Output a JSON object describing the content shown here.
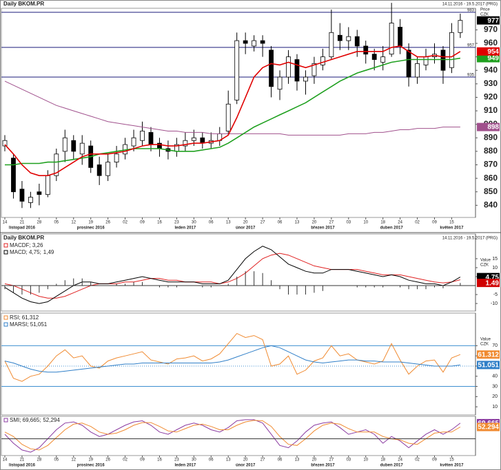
{
  "chart_data": [
    {
      "type": "candlestick",
      "title": "Daily BKOM.PR",
      "subtitle": "14.11.2016 - 19.5.2017 (PRG)",
      "y_label": [
        "Price",
        "CZK"
      ],
      "categories": [
        "14",
        null,
        "21",
        null,
        "28",
        null,
        "05",
        null,
        "12",
        null,
        "19",
        null,
        "26",
        null,
        "02",
        null,
        "09",
        null,
        "16",
        null,
        "23",
        null,
        "30",
        null,
        "06",
        null,
        "13",
        null,
        "20",
        null,
        "27",
        null,
        "06",
        null,
        "13",
        null,
        "20",
        null,
        "27",
        null,
        "03",
        null,
        "10",
        null,
        "18",
        null,
        "24",
        null,
        "02",
        null,
        "09",
        null,
        "15",
        null
      ],
      "month_labels": [
        null,
        null,
        "listopad 2016",
        null,
        null,
        null,
        null,
        null,
        null,
        null,
        "prosinec 2016",
        null,
        null,
        null,
        null,
        null,
        null,
        null,
        null,
        null,
        null,
        "leden 2017",
        null,
        null,
        null,
        null,
        null,
        null,
        "únor 2017",
        null,
        null,
        null,
        null,
        null,
        null,
        null,
        null,
        "březen 2017",
        null,
        null,
        null,
        null,
        null,
        null,
        null,
        "duben 2017",
        null,
        null,
        null,
        null,
        null,
        null,
        "květen 2017",
        null
      ],
      "open": [
        884,
        875,
        852,
        842,
        850,
        848,
        862,
        880,
        888,
        878,
        884,
        870,
        862,
        872,
        878,
        884,
        888,
        894,
        886,
        882,
        880,
        884,
        888,
        890,
        886,
        888,
        895,
        918,
        962,
        958,
        962,
        955,
        926,
        935,
        948,
        932,
        936,
        944,
        950,
        966,
        962,
        965,
        958,
        952,
        946,
        952,
        972,
        955,
        935,
        944,
        950,
        955,
        942,
        968
      ],
      "high": [
        892,
        878,
        858,
        850,
        856,
        866,
        882,
        896,
        892,
        892,
        888,
        876,
        878,
        884,
        890,
        896,
        902,
        898,
        890,
        888,
        890,
        894,
        896,
        894,
        894,
        898,
        925,
        968,
        968,
        966,
        966,
        958,
        940,
        955,
        952,
        940,
        950,
        956,
        985,
        975,
        972,
        970,
        962,
        956,
        958,
        990,
        978,
        960,
        950,
        956,
        960,
        958,
        975,
        982
      ],
      "low": [
        880,
        845,
        838,
        838,
        840,
        846,
        858,
        872,
        874,
        870,
        864,
        855,
        858,
        868,
        874,
        880,
        884,
        880,
        876,
        874,
        876,
        880,
        884,
        882,
        882,
        884,
        892,
        915,
        952,
        954,
        950,
        920,
        918,
        930,
        925,
        922,
        930,
        940,
        948,
        955,
        955,
        950,
        945,
        940,
        940,
        950,
        952,
        928,
        930,
        940,
        945,
        930,
        938,
        964
      ],
      "close": [
        888,
        850,
        843,
        846,
        848,
        862,
        878,
        890,
        880,
        886,
        868,
        862,
        872,
        878,
        885,
        890,
        895,
        885,
        882,
        880,
        885,
        888,
        890,
        886,
        888,
        893,
        915,
        962,
        960,
        962,
        960,
        928,
        935,
        950,
        932,
        935,
        945,
        950,
        968,
        962,
        965,
        958,
        952,
        948,
        950,
        975,
        958,
        935,
        945,
        950,
        952,
        940,
        968,
        977
      ],
      "up_color": "#ffffff",
      "down_color": "#000000",
      "series": [
        {
          "color": "#a0508c",
          "values": [
            932,
            929,
            926,
            923,
            920,
            917,
            914,
            912,
            910,
            908,
            906,
            904,
            902,
            901,
            900,
            899,
            898,
            897,
            896,
            895,
            895,
            894,
            894,
            894,
            893,
            893,
            893,
            893,
            893,
            893,
            893,
            893,
            893,
            892,
            892,
            892,
            892,
            892,
            892,
            892,
            893,
            893,
            893,
            894,
            894,
            895,
            896,
            896,
            897,
            897,
            897,
            898,
            898,
            898
          ]
        },
        {
          "color": "#1fa01f",
          "values": [
            870,
            870,
            871,
            871,
            871,
            872,
            872,
            873,
            874,
            875,
            876,
            878,
            879,
            880,
            881,
            882,
            882,
            882,
            882,
            881,
            880,
            880,
            880,
            881,
            882,
            883,
            886,
            890,
            894,
            898,
            901,
            904,
            907,
            910,
            913,
            916,
            920,
            924,
            928,
            932,
            935,
            938,
            940,
            942,
            944,
            946,
            947,
            948,
            948,
            948,
            948,
            948,
            948,
            949
          ]
        },
        {
          "color": "#e00000",
          "values": [
            885,
            878,
            870,
            864,
            862,
            862,
            864,
            868,
            872,
            876,
            878,
            878,
            878,
            879,
            880,
            882,
            884,
            885,
            885,
            884,
            884,
            885,
            886,
            886,
            887,
            888,
            892,
            905,
            920,
            935,
            942,
            945,
            944,
            946,
            944,
            942,
            944,
            946,
            948,
            950,
            952,
            954,
            954,
            954,
            954,
            957,
            958,
            954,
            950,
            950,
            951,
            950,
            950,
            954
          ]
        }
      ],
      "hlines": [
        983,
        957,
        935
      ],
      "hline_color": "#1a1a7a",
      "ylim": [
        831,
        986
      ],
      "yticks": [
        840,
        850,
        860,
        870,
        880,
        890,
        900,
        910,
        920,
        930,
        940,
        950,
        960,
        970
      ]
    },
    {
      "type": "line",
      "title": "Daily BKOM.PR",
      "subtitle": "14.11.2016 - 19.5.2017 (PRG)",
      "y_label": [
        "Value",
        "CZK"
      ],
      "series": [
        {
          "name": "MACDF; 3,26",
          "color": "#e02020",
          "values": [
            1,
            0,
            -2,
            -4,
            -6,
            -7,
            -7,
            -6,
            -4,
            -2,
            0,
            1,
            1,
            1,
            2,
            2,
            3,
            4,
            4,
            3,
            3,
            2,
            2,
            2,
            2,
            1,
            2,
            4,
            7,
            11,
            15,
            17,
            18,
            17,
            15,
            13,
            11,
            10,
            9,
            9,
            9,
            9,
            8,
            7,
            6,
            6,
            6,
            5,
            4,
            3,
            2,
            1.5,
            2,
            3.26
          ]
        },
        {
          "name": "MACD; 4,75;",
          "color": "#000000",
          "values": [
            -1,
            -4,
            -7,
            -9,
            -10,
            -9,
            -6,
            -3,
            0,
            2,
            2,
            1,
            1,
            2,
            3,
            4,
            5,
            4,
            3,
            2,
            2,
            2,
            2,
            1,
            1,
            1,
            3,
            9,
            15,
            19,
            22,
            20,
            16,
            12,
            10,
            8,
            7,
            7,
            9,
            9,
            9,
            8,
            7,
            6,
            5,
            6,
            5,
            3,
            2,
            1,
            1,
            0,
            2,
            4.75
          ]
        },
        {
          "name": "1,49",
          "color": "#d00000",
          "style": "bar",
          "bar_color": "#333333",
          "legend_inline": true,
          "values": [
            -2,
            -4,
            -5,
            -5,
            -4,
            -2,
            1,
            3,
            4,
            4,
            2,
            0,
            0,
            1,
            1,
            2,
            2,
            0,
            -1,
            -1,
            -1,
            0,
            0,
            -1,
            -1,
            0,
            1,
            5,
            8,
            8,
            7,
            3,
            -2,
            -5,
            -5,
            -5,
            -4,
            -3,
            0,
            0,
            0,
            -1,
            -1,
            -1,
            -1,
            0,
            -1,
            -2,
            -2,
            -2,
            -1,
            -1.5,
            0,
            1.49
          ]
        }
      ],
      "ylim": [
        -14.2,
        28.8
      ],
      "yticks": [
        -10,
        -5,
        5,
        10,
        15
      ]
    },
    {
      "type": "line",
      "y_label": [
        "Value",
        "CZK"
      ],
      "series": [
        {
          "name": "RSI; 61,312",
          "color": "#f08a30",
          "values": [
            55,
            38,
            35,
            40,
            42,
            50,
            60,
            66,
            58,
            60,
            50,
            48,
            55,
            58,
            60,
            62,
            64,
            56,
            54,
            52,
            57,
            58,
            60,
            55,
            57,
            62,
            72,
            82,
            78,
            80,
            76,
            50,
            52,
            60,
            42,
            46,
            55,
            58,
            70,
            60,
            62,
            56,
            54,
            52,
            55,
            72,
            56,
            42,
            50,
            55,
            56,
            44,
            58,
            61.312
          ]
        },
        {
          "name": "MARSI; 51,051",
          "color": "#2f7fc8",
          "values": [
            55,
            53,
            50,
            47,
            45,
            44,
            44,
            45,
            46,
            47,
            48,
            49,
            50,
            51,
            52,
            52,
            53,
            53,
            53,
            53,
            53,
            53,
            53,
            53,
            53,
            54,
            56,
            59,
            62,
            65,
            68,
            70,
            68,
            64,
            60,
            56,
            54,
            53,
            54,
            55,
            56,
            56,
            55,
            55,
            54,
            54,
            54,
            53,
            52,
            51,
            50,
            50,
            50,
            51.051
          ]
        }
      ],
      "hlines": [
        70,
        30
      ],
      "hline_color": "#3d8fd0",
      "midline": 50,
      "ylim": [
        2,
        102
      ],
      "yticks": [
        10,
        20,
        30,
        40,
        50,
        60,
        70
      ]
    },
    {
      "type": "line",
      "series": [
        {
          "name": "SMI; 69,665;",
          "color": "#8a3aa0",
          "values": [
            20,
            -20,
            -50,
            -60,
            -40,
            0,
            40,
            70,
            75,
            60,
            30,
            10,
            20,
            40,
            60,
            75,
            80,
            60,
            30,
            20,
            40,
            60,
            70,
            60,
            40,
            30,
            50,
            80,
            85,
            85,
            70,
            20,
            -30,
            -40,
            -10,
            30,
            60,
            70,
            75,
            50,
            20,
            30,
            40,
            20,
            -20,
            10,
            -10,
            -40,
            -10,
            20,
            40,
            20,
            40,
            69.665
          ]
        },
        {
          "name": "52,294",
          "color": "#f08a30",
          "legend_inline": true,
          "values": [
            30,
            10,
            -25,
            -45,
            -50,
            -30,
            5,
            40,
            65,
            70,
            55,
            30,
            20,
            25,
            40,
            60,
            72,
            72,
            55,
            35,
            30,
            45,
            60,
            65,
            55,
            40,
            40,
            60,
            75,
            82,
            80,
            55,
            10,
            -25,
            -30,
            0,
            35,
            60,
            70,
            65,
            45,
            30,
            30,
            30,
            10,
            0,
            -5,
            -20,
            -25,
            0,
            25,
            30,
            30,
            52.294
          ]
        }
      ],
      "ylim": [
        -75,
        100
      ]
    }
  ]
}
